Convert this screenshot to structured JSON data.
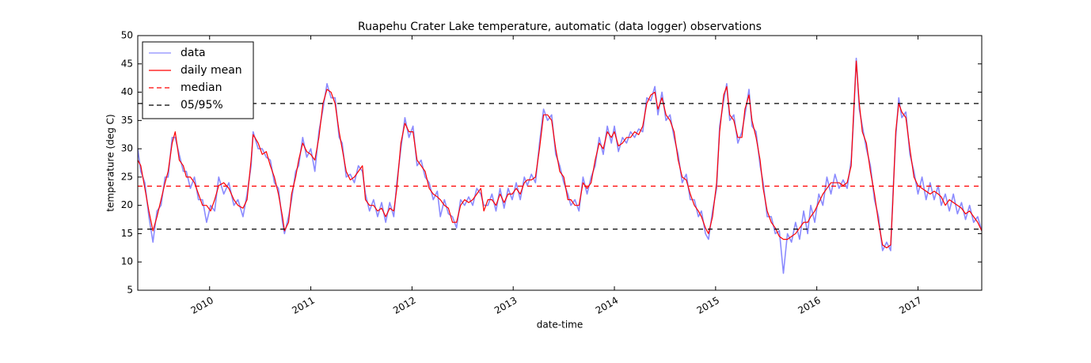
{
  "chart_data": {
    "type": "line",
    "title": "Ruapehu Crater Lake temperature, automatic (data logger) observations",
    "xlabel": "date-time",
    "ylabel": "temperature (deg C)",
    "x": [
      2009.29,
      2009.32,
      2009.36,
      2009.4,
      2009.44,
      2009.48,
      2009.52,
      2009.56,
      2009.59,
      2009.63,
      2009.66,
      2009.7,
      2009.74,
      2009.77,
      2009.81,
      2009.85,
      2009.89,
      2009.93,
      2009.97,
      2010.01,
      2010.05,
      2010.09,
      2010.14,
      2010.19,
      2010.24,
      2010.28,
      2010.33,
      2010.37,
      2010.41,
      2010.43,
      2010.48,
      2010.52,
      2010.56,
      2010.6,
      2010.64,
      2010.68,
      2010.72,
      2010.74,
      2010.78,
      2010.81,
      2010.85,
      2010.88,
      2010.92,
      2010.96,
      2011.0,
      2011.04,
      2011.08,
      2011.12,
      2011.16,
      2011.2,
      2011.24,
      2011.28,
      2011.31,
      2011.35,
      2011.39,
      2011.43,
      2011.47,
      2011.51,
      2011.54,
      2011.58,
      2011.62,
      2011.66,
      2011.7,
      2011.74,
      2011.78,
      2011.82,
      2011.85,
      2011.89,
      2011.93,
      2011.97,
      2012.01,
      2012.05,
      2012.09,
      2012.13,
      2012.17,
      2012.21,
      2012.25,
      2012.28,
      2012.32,
      2012.36,
      2012.4,
      2012.44,
      2012.48,
      2012.52,
      2012.56,
      2012.6,
      2012.64,
      2012.68,
      2012.71,
      2012.75,
      2012.79,
      2012.83,
      2012.87,
      2012.91,
      2012.95,
      2012.99,
      2013.03,
      2013.07,
      2013.11,
      2013.14,
      2013.18,
      2013.22,
      2013.26,
      2013.3,
      2013.34,
      2013.38,
      2013.42,
      2013.46,
      2013.5,
      2013.54,
      2013.57,
      2013.61,
      2013.65,
      2013.69,
      2013.73,
      2013.77,
      2013.81,
      2013.85,
      2013.89,
      2013.93,
      2013.97,
      2014.0,
      2014.04,
      2014.08,
      2014.12,
      2014.16,
      2014.2,
      2014.24,
      2014.28,
      2014.32,
      2014.36,
      2014.4,
      2014.43,
      2014.47,
      2014.51,
      2014.55,
      2014.59,
      2014.63,
      2014.67,
      2014.71,
      2014.75,
      2014.79,
      2014.83,
      2014.86,
      2014.9,
      2014.93,
      2014.97,
      2015.01,
      2015.04,
      2015.08,
      2015.11,
      2015.14,
      2015.18,
      2015.22,
      2015.26,
      2015.29,
      2015.33,
      2015.36,
      2015.4,
      2015.44,
      2015.47,
      2015.51,
      2015.55,
      2015.59,
      2015.63,
      2015.67,
      2015.71,
      2015.75,
      2015.79,
      2015.83,
      2015.87,
      2015.91,
      2015.94,
      2015.98,
      2016.02,
      2016.06,
      2016.1,
      2016.14,
      2016.18,
      2016.22,
      2016.26,
      2016.3,
      2016.34,
      2016.36,
      2016.39,
      2016.42,
      2016.45,
      2016.49,
      2016.53,
      2016.57,
      2016.61,
      2016.65,
      2016.69,
      2016.73,
      2016.75,
      2016.78,
      2016.81,
      2016.84,
      2016.88,
      2016.92,
      2016.96,
      2017.0,
      2017.04,
      2017.08,
      2017.12,
      2017.16,
      2017.2,
      2017.23,
      2017.27,
      2017.31,
      2017.35,
      2017.39,
      2017.43,
      2017.47,
      2017.51,
      2017.55,
      2017.59,
      2017.63
    ],
    "series": [
      {
        "name": "data",
        "color": "#7777ff",
        "values": [
          30,
          26,
          24,
          18,
          13.5,
          19,
          20,
          25,
          25,
          32,
          32,
          29,
          26,
          26,
          23,
          25,
          21,
          21,
          17,
          20,
          19,
          25,
          22,
          24,
          20,
          21,
          18,
          22,
          27,
          33,
          30,
          30,
          28.5,
          28,
          24,
          23,
          17,
          15,
          18,
          21,
          26,
          27,
          32,
          28.5,
          30,
          26,
          33,
          37,
          41.5,
          39,
          39,
          32,
          31,
          25,
          25.5,
          24,
          27,
          26,
          22,
          19,
          21,
          18,
          20.5,
          17,
          20.5,
          18,
          24,
          30,
          35.5,
          32,
          34,
          27,
          28,
          25,
          24,
          21,
          22.5,
          18,
          21,
          18.5,
          18,
          16,
          21,
          20,
          21.5,
          20,
          23,
          22,
          20,
          20,
          22,
          19,
          23,
          19.5,
          23,
          21,
          24,
          21,
          25,
          23.5,
          25.5,
          24,
          31,
          37,
          35,
          36,
          29,
          27,
          24,
          22,
          20,
          21,
          19,
          25,
          22,
          25,
          27,
          32,
          29,
          34,
          31,
          34,
          29.5,
          32,
          31,
          33,
          32,
          33.5,
          33,
          39,
          38.5,
          41,
          36,
          40,
          35,
          36,
          32,
          29,
          24,
          25.5,
          21,
          21,
          18,
          19,
          15,
          14,
          19,
          23,
          34,
          38.5,
          41.5,
          35,
          36,
          31,
          33,
          36,
          40.5,
          34,
          33,
          27,
          24,
          18,
          18,
          15,
          15.5,
          8,
          15,
          13.5,
          17,
          14,
          19,
          15,
          20,
          17,
          22,
          20,
          25,
          22,
          25.5,
          23,
          24.5,
          23,
          28,
          34,
          46,
          37,
          34,
          30,
          27,
          21,
          18,
          12,
          13.5,
          12,
          21,
          32,
          39,
          35.5,
          36.5,
          29,
          26,
          22,
          25,
          21,
          24,
          21,
          23.5,
          20,
          22,
          19,
          22,
          18.5,
          20.5,
          17.5,
          20,
          17,
          18,
          15.5
        ]
      },
      {
        "name": "daily mean",
        "color": "#ff0000",
        "values": [
          28,
          27,
          23,
          19,
          15.5,
          18,
          21,
          24,
          26,
          31,
          33,
          28,
          27,
          25,
          25,
          24,
          22,
          20,
          20,
          19,
          21,
          23.5,
          24,
          23,
          21,
          20,
          19.5,
          21,
          28,
          32.5,
          31,
          29,
          29.5,
          27,
          25,
          22,
          18,
          15.5,
          17,
          22,
          25,
          28,
          31,
          29.5,
          29,
          28,
          32,
          38,
          40.5,
          40,
          38,
          33,
          30,
          26,
          24.5,
          25,
          26,
          27,
          21,
          20,
          20,
          19,
          19.5,
          18,
          19.5,
          19,
          23,
          31,
          34.5,
          33,
          33,
          28,
          27,
          26,
          23,
          22,
          21.5,
          21,
          20,
          19.5,
          17,
          17,
          20,
          21,
          20.5,
          21,
          22,
          23,
          19,
          21,
          21,
          20,
          22,
          20.5,
          22,
          22,
          23,
          22,
          24,
          24.5,
          24.5,
          25,
          30,
          36,
          36,
          35,
          30,
          26,
          25,
          21,
          21,
          20,
          20,
          24,
          23,
          24,
          28,
          31,
          30,
          33,
          32,
          33,
          30.5,
          31,
          32,
          32,
          33,
          32.5,
          34,
          38,
          39.5,
          40,
          37,
          39,
          36,
          35,
          33,
          28,
          25,
          24.5,
          22,
          20,
          19,
          18,
          16,
          15,
          18,
          24,
          33,
          39.5,
          41,
          36,
          35,
          32,
          32,
          37,
          39.5,
          35,
          32,
          28,
          23,
          19,
          17,
          16,
          14.5,
          14,
          14,
          14.5,
          15,
          16,
          17,
          17,
          18,
          19,
          20.5,
          22,
          23,
          24,
          24,
          24,
          23.5,
          24,
          27,
          35,
          45.5,
          38,
          33,
          31,
          26,
          22,
          17,
          13,
          12.5,
          13,
          20,
          33,
          38,
          36.5,
          35.5,
          30,
          25,
          23.5,
          23,
          22.5,
          22,
          22.5,
          22,
          21.5,
          20,
          21,
          20.5,
          20,
          19.5,
          18.5,
          19,
          18,
          17,
          15.5
        ]
      }
    ],
    "hlines": [
      {
        "name": "median",
        "color": "#ff0000",
        "values": [
          23.4
        ]
      },
      {
        "name": "05/95%",
        "color": "#000000",
        "values": [
          15.8,
          38.0
        ]
      }
    ],
    "xlim": [
      2009.29,
      2017.63
    ],
    "xticks": [
      2010,
      2011,
      2012,
      2013,
      2014,
      2015,
      2016,
      2017
    ],
    "ylim": [
      5,
      50
    ],
    "yticks": [
      5,
      10,
      15,
      20,
      25,
      30,
      35,
      40,
      45,
      50
    ],
    "legend": "upper left"
  }
}
